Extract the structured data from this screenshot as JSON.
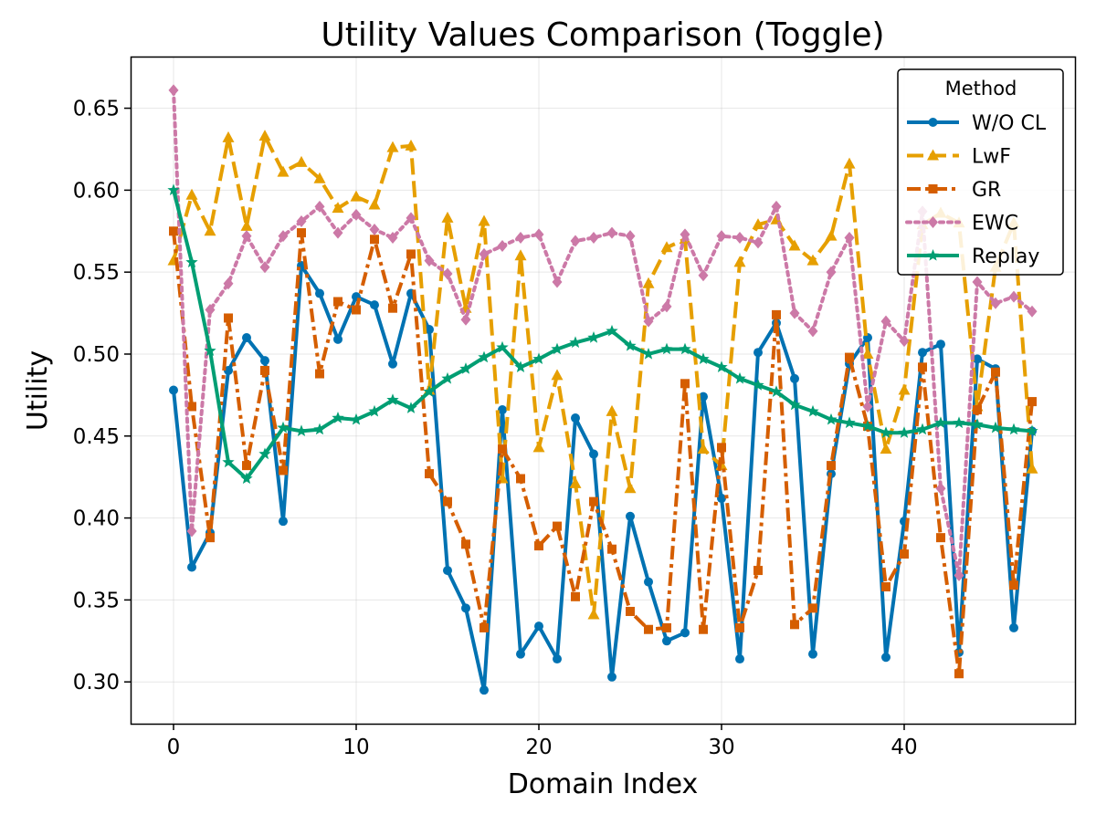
{
  "chart_data": {
    "type": "line",
    "title": "Utility Values Comparison (Toggle)",
    "xlabel": "Domain Index",
    "ylabel": "Utility",
    "xlim": [
      -2.35,
      49.35
    ],
    "ylim": [
      0.2745,
      0.6815
    ],
    "xticks": [
      0,
      10,
      20,
      30,
      40
    ],
    "yticks": [
      0.3,
      0.35,
      0.4,
      0.45,
      0.5,
      0.55,
      0.6,
      0.65
    ],
    "xtick_labels": [
      "0",
      "10",
      "20",
      "30",
      "40"
    ],
    "ytick_labels": [
      "0.30",
      "0.35",
      "0.40",
      "0.45",
      "0.50",
      "0.55",
      "0.60",
      "0.65"
    ],
    "grid": true,
    "legend": {
      "title": "Method",
      "position": "top-right"
    },
    "x": [
      0,
      1,
      2,
      3,
      4,
      5,
      6,
      7,
      8,
      9,
      10,
      11,
      12,
      13,
      14,
      15,
      16,
      17,
      18,
      19,
      20,
      21,
      22,
      23,
      24,
      25,
      26,
      27,
      28,
      29,
      30,
      31,
      32,
      33,
      34,
      35,
      36,
      37,
      38,
      39,
      40,
      41,
      42,
      43,
      44,
      45,
      46,
      47
    ],
    "series": [
      {
        "name": "W/O CL",
        "color": "#0072b2",
        "dash": "solid",
        "marker": "circle",
        "values": [
          0.478,
          0.37,
          0.391,
          0.49,
          0.51,
          0.496,
          0.398,
          0.554,
          0.537,
          0.509,
          0.535,
          0.53,
          0.494,
          0.537,
          0.515,
          0.368,
          0.345,
          0.295,
          0.466,
          0.317,
          0.334,
          0.314,
          0.461,
          0.439,
          0.303,
          0.401,
          0.361,
          0.325,
          0.33,
          0.474,
          0.412,
          0.314,
          0.501,
          0.519,
          0.485,
          0.317,
          0.427,
          0.494,
          0.51,
          0.315,
          0.398,
          0.501,
          0.506,
          0.318,
          0.497,
          0.491,
          0.333,
          0.453
        ]
      },
      {
        "name": "LwF",
        "color": "#e69f00",
        "dash": "dashed",
        "marker": "triangle",
        "values": [
          0.557,
          0.597,
          0.575,
          0.632,
          0.578,
          0.633,
          0.611,
          0.617,
          0.607,
          0.589,
          0.596,
          0.591,
          0.626,
          0.627,
          0.478,
          0.583,
          0.528,
          0.581,
          0.424,
          0.56,
          0.443,
          0.487,
          0.421,
          0.341,
          0.465,
          0.418,
          0.543,
          0.565,
          0.57,
          0.442,
          0.432,
          0.556,
          0.579,
          0.582,
          0.566,
          0.557,
          0.572,
          0.616,
          0.5,
          0.442,
          0.478,
          0.579,
          0.586,
          0.58,
          0.468,
          0.553,
          0.58,
          0.43
        ]
      },
      {
        "name": "GR",
        "color": "#d55e00",
        "dash": "dashdot",
        "marker": "square",
        "values": [
          0.575,
          0.468,
          0.388,
          0.522,
          0.432,
          0.49,
          0.429,
          0.574,
          0.488,
          0.532,
          0.527,
          0.57,
          0.528,
          0.561,
          0.427,
          0.41,
          0.384,
          0.333,
          0.442,
          0.424,
          0.383,
          0.395,
          0.352,
          0.41,
          0.381,
          0.343,
          0.332,
          0.333,
          0.482,
          0.332,
          0.443,
          0.333,
          0.368,
          0.524,
          0.335,
          0.345,
          0.432,
          0.498,
          0.456,
          0.358,
          0.378,
          0.492,
          0.388,
          0.305,
          0.466,
          0.489,
          0.359,
          0.471
        ]
      },
      {
        "name": "EWC",
        "color": "#cc79a7",
        "dash": "dotted",
        "marker": "diamond",
        "values": [
          0.661,
          0.392,
          0.527,
          0.543,
          0.572,
          0.553,
          0.572,
          0.581,
          0.59,
          0.574,
          0.585,
          0.576,
          0.571,
          0.583,
          0.557,
          0.549,
          0.521,
          0.561,
          0.566,
          0.571,
          0.573,
          0.544,
          0.569,
          0.571,
          0.574,
          0.572,
          0.52,
          0.529,
          0.573,
          0.548,
          0.572,
          0.571,
          0.568,
          0.59,
          0.525,
          0.514,
          0.55,
          0.571,
          0.468,
          0.52,
          0.508,
          0.587,
          0.418,
          0.365,
          0.544,
          0.531,
          0.535,
          0.526
        ]
      },
      {
        "name": "Replay",
        "color": "#009e73",
        "dash": "solid",
        "marker": "star",
        "values": [
          0.6,
          0.556,
          0.502,
          0.434,
          0.424,
          0.439,
          0.455,
          0.453,
          0.454,
          0.461,
          0.46,
          0.465,
          0.472,
          0.467,
          0.477,
          0.485,
          0.491,
          0.498,
          0.504,
          0.492,
          0.497,
          0.503,
          0.507,
          0.51,
          0.514,
          0.505,
          0.5,
          0.503,
          0.503,
          0.497,
          0.492,
          0.485,
          0.481,
          0.477,
          0.469,
          0.465,
          0.46,
          0.458,
          0.456,
          0.452,
          0.452,
          0.454,
          0.458,
          0.458,
          0.457,
          0.455,
          0.454,
          0.453
        ]
      }
    ]
  }
}
